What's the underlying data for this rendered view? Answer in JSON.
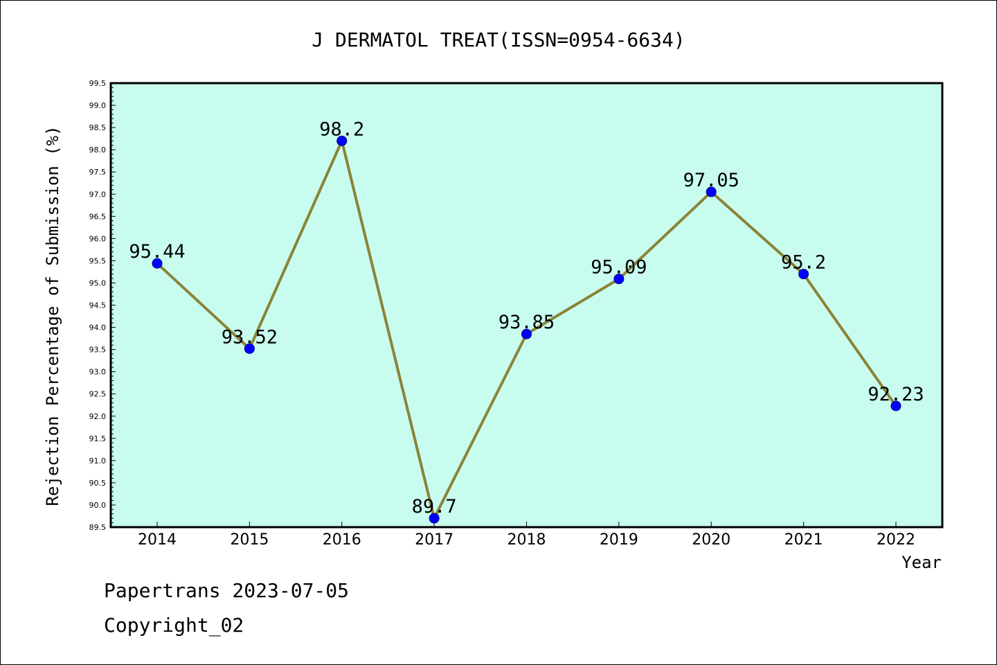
{
  "chart_data": {
    "type": "line",
    "title": "J DERMATOL TREAT(ISSN=0954-6634)",
    "xlabel": "Year",
    "ylabel": "Rejection Percentage of Submission (%)",
    "categories": [
      "2014",
      "2015",
      "2016",
      "2017",
      "2018",
      "2019",
      "2020",
      "2021",
      "2022"
    ],
    "values": [
      95.44,
      93.52,
      98.2,
      89.7,
      93.85,
      95.09,
      97.05,
      95.2,
      92.23
    ],
    "data_labels": [
      "95.44",
      "93.52",
      "98.2",
      "89.7",
      "93.85",
      "95.09",
      "97.05",
      "95.2",
      "92.23"
    ],
    "ylim": [
      89.5,
      99.5
    ],
    "ytick_step": 0.5,
    "grid": false,
    "colors": {
      "plot_background": "#c8fcee",
      "line": "#8b8338",
      "marker": "#0000ff",
      "marker_edge": "#00008b"
    }
  },
  "footer": {
    "line1": "Papertrans 2023-07-05",
    "line2": "Copyright_02"
  }
}
